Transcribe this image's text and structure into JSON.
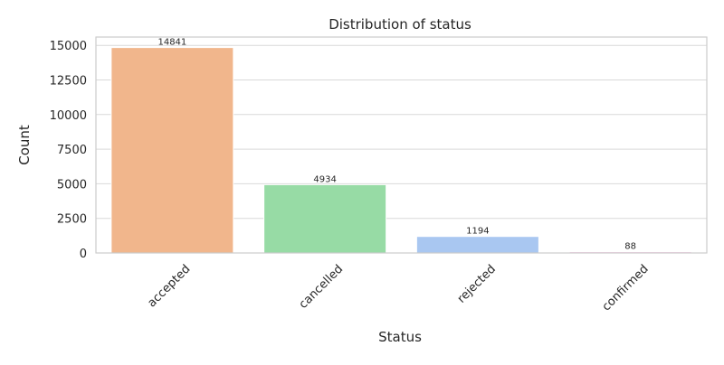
{
  "chart_data": {
    "type": "bar",
    "title": "Distribution of status",
    "xlabel": "Status",
    "ylabel": "Count",
    "categories": [
      "accepted",
      "cancelled",
      "rejected",
      "confirmed"
    ],
    "values": [
      14841,
      4934,
      1194,
      88
    ],
    "data_labels": [
      "14841",
      "4934",
      "1194",
      "88"
    ],
    "colors": [
      "#f1b68c",
      "#97dba5",
      "#a9c7f1",
      "#f6bfe2"
    ],
    "yticks": [
      0,
      2500,
      5000,
      7500,
      10000,
      12500,
      15000
    ],
    "ytick_labels": [
      "0",
      "2500",
      "5000",
      "7500",
      "10000",
      "12500",
      "15000"
    ],
    "ylim": [
      0,
      15600
    ],
    "grid": "y-axis",
    "legend": "none",
    "background": "#ffffff",
    "grid_color": "#d9d9d9",
    "spine_color": "#cccccc"
  }
}
